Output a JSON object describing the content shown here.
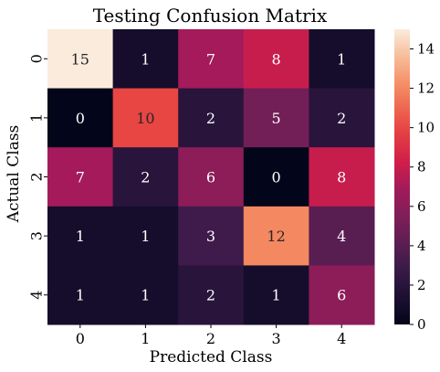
{
  "chart_data": {
    "type": "heatmap",
    "title": "Testing Confusion Matrix",
    "xlabel": "Predicted Class",
    "ylabel": "Actual Class",
    "x_categories": [
      "0",
      "1",
      "2",
      "3",
      "4"
    ],
    "y_categories": [
      "0",
      "1",
      "2",
      "3",
      "4"
    ],
    "values": [
      [
        15,
        1,
        7,
        8,
        1
      ],
      [
        0,
        10,
        2,
        5,
        2
      ],
      [
        7,
        2,
        6,
        0,
        8
      ],
      [
        1,
        1,
        3,
        12,
        4
      ],
      [
        1,
        1,
        2,
        1,
        6
      ]
    ],
    "vmin": 0,
    "vmax": 15,
    "colormap": "rocket",
    "colorbar_ticks": [
      0,
      2,
      4,
      6,
      8,
      10,
      12,
      14
    ],
    "legend": "colorbar-right"
  }
}
